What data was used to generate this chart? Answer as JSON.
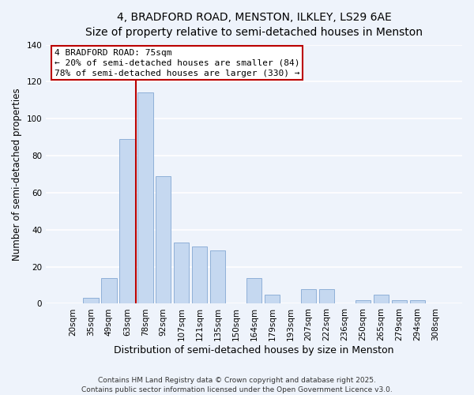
{
  "title": "4, BRADFORD ROAD, MENSTON, ILKLEY, LS29 6AE",
  "subtitle": "Size of property relative to semi-detached houses in Menston",
  "xlabel": "Distribution of semi-detached houses by size in Menston",
  "ylabel": "Number of semi-detached properties",
  "categories": [
    "20sqm",
    "35sqm",
    "49sqm",
    "63sqm",
    "78sqm",
    "92sqm",
    "107sqm",
    "121sqm",
    "135sqm",
    "150sqm",
    "164sqm",
    "179sqm",
    "193sqm",
    "207sqm",
    "222sqm",
    "236sqm",
    "250sqm",
    "265sqm",
    "279sqm",
    "294sqm",
    "308sqm"
  ],
  "values": [
    0,
    3,
    14,
    89,
    114,
    69,
    33,
    31,
    29,
    0,
    14,
    5,
    0,
    8,
    8,
    0,
    2,
    5,
    2,
    2,
    0
  ],
  "bar_color": "#c5d8f0",
  "bar_edge_color": "#8fb0d8",
  "vline_index": 3.5,
  "property_line_label": "4 BRADFORD ROAD: 75sqm",
  "smaller_pct": "20%",
  "smaller_n": 84,
  "larger_pct": "78%",
  "larger_n": 330,
  "annotation_box_color": "#ffffff",
  "annotation_box_edge": "#bb0000",
  "vline_color": "#bb0000",
  "ylim": [
    0,
    140
  ],
  "yticks": [
    0,
    20,
    40,
    60,
    80,
    100,
    120,
    140
  ],
  "footnote1": "Contains HM Land Registry data © Crown copyright and database right 2025.",
  "footnote2": "Contains public sector information licensed under the Open Government Licence v3.0.",
  "bg_color": "#eef3fb",
  "grid_color": "#ffffff"
}
